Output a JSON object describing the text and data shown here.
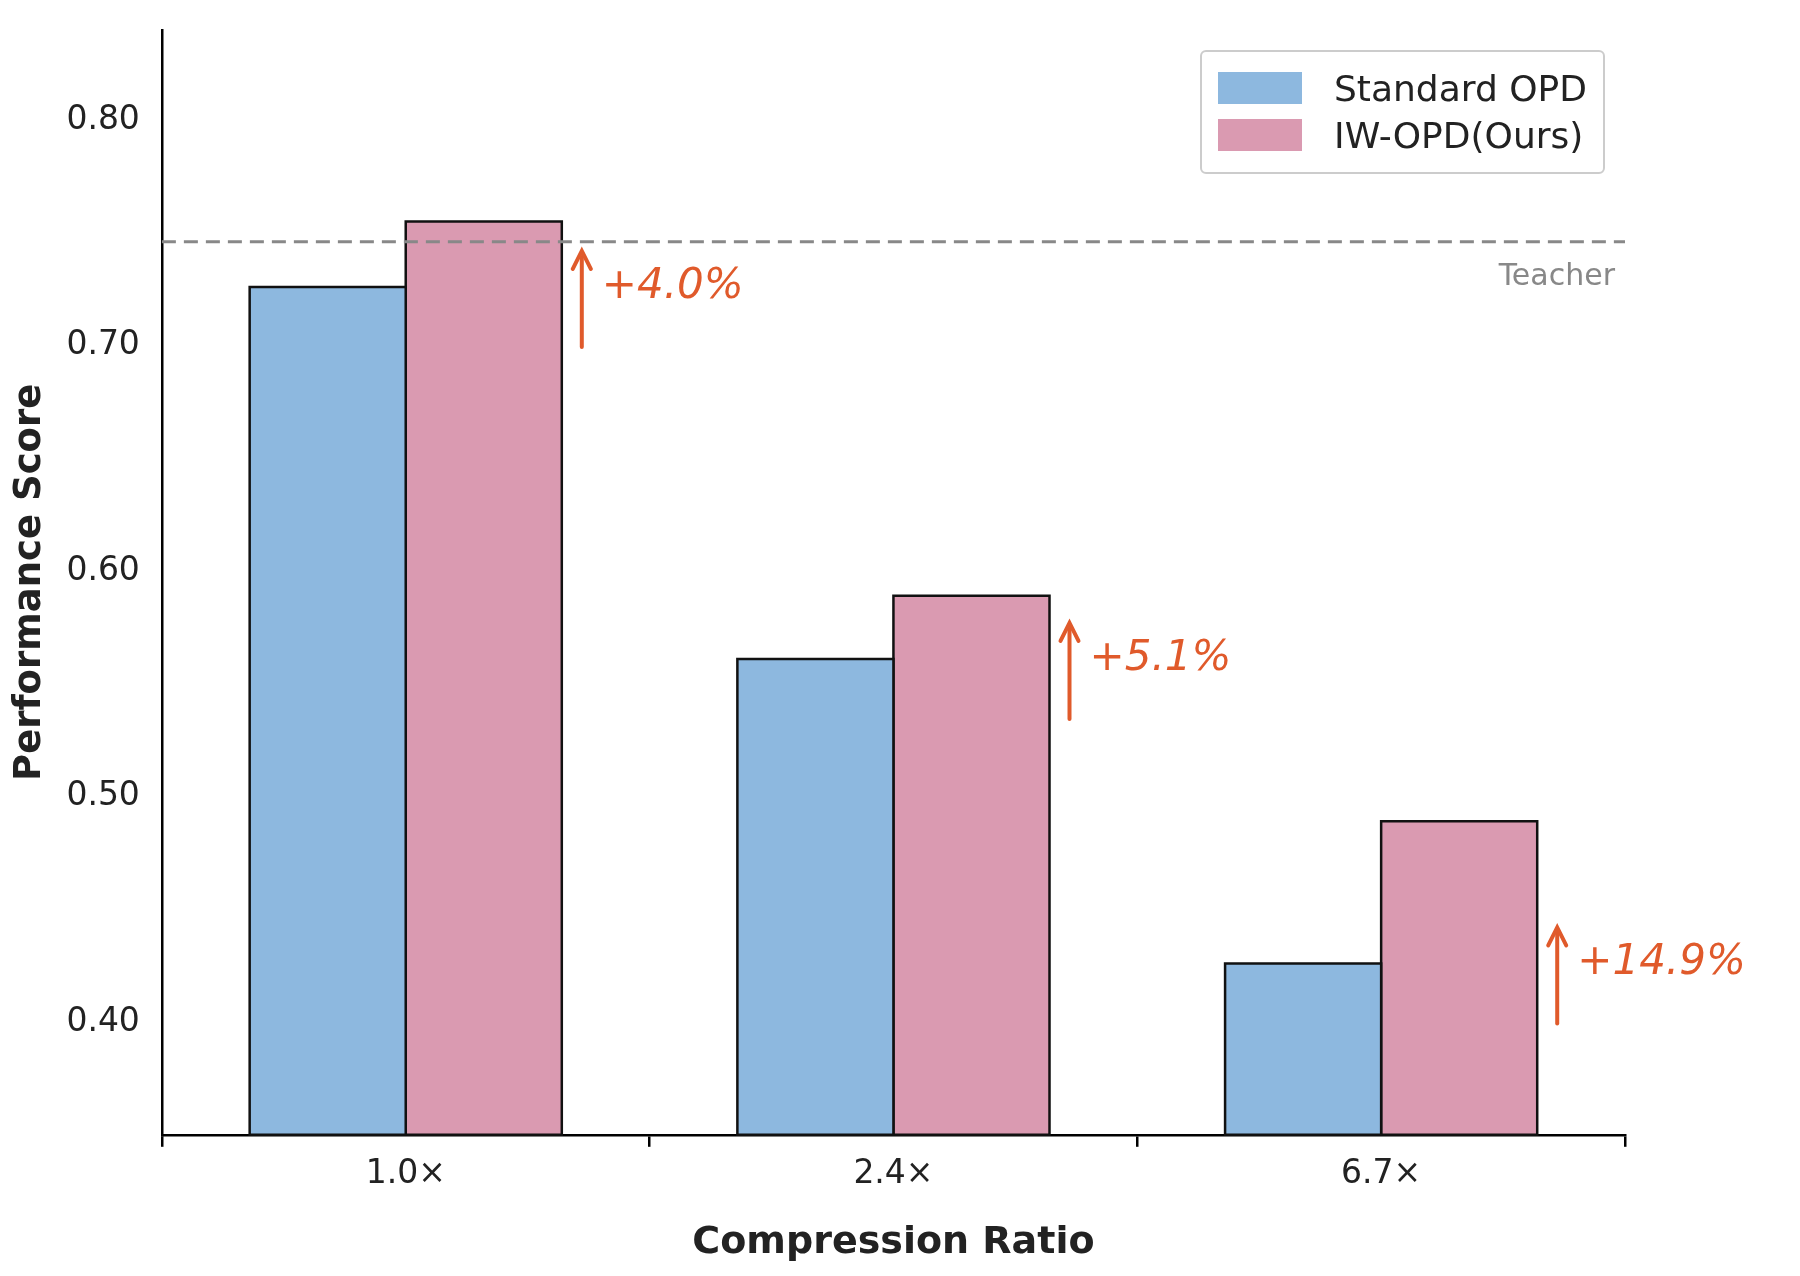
{
  "chart_data": {
    "type": "bar",
    "xlabel": "Compression Ratio",
    "ylabel": "Performance Score",
    "categories": [
      "1.0×",
      "2.4×",
      "6.7×"
    ],
    "series": [
      {
        "name": "Standard OPD",
        "color": "#8db8df",
        "values": [
          0.726,
          0.561,
          0.426
        ]
      },
      {
        "name": "IW-OPD(Ours)",
        "color": "#da9ab1",
        "values": [
          0.755,
          0.589,
          0.489
        ]
      }
    ],
    "ylim": [
      0.35,
      0.84
    ],
    "yticks": [
      {
        "value": 0.4,
        "label": "0.40"
      },
      {
        "value": 0.5,
        "label": "0.50"
      },
      {
        "value": 0.6,
        "label": "0.60"
      },
      {
        "value": 0.7,
        "label": "0.70"
      },
      {
        "value": 0.8,
        "label": "0.80"
      }
    ],
    "ref_lines": [
      {
        "axis": "y",
        "value": 0.746,
        "label": "Teacher",
        "color": "#888888",
        "line_style": "dashed"
      }
    ],
    "annotations": [
      "+4.0%",
      "+5.1%",
      "+14.9%"
    ],
    "grid": false,
    "legend": "top right"
  }
}
